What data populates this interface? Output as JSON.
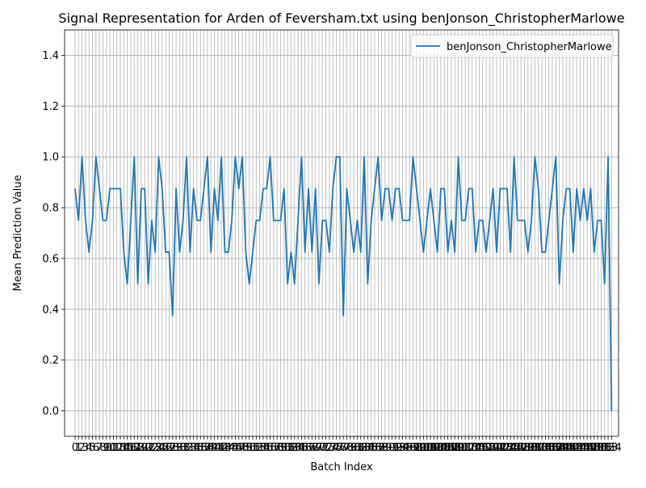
{
  "chart_data": {
    "type": "line",
    "title": "Signal Representation for Arden of Feversham.txt using benJonson_ChristopherMarlowe",
    "xlabel": "Batch Index",
    "ylabel": "Mean Prediction Value",
    "xlim": [
      -3,
      156
    ],
    "ylim": [
      -0.1,
      1.5
    ],
    "yticks": [
      0.0,
      0.2,
      0.4,
      0.6,
      0.8,
      1.0,
      1.2,
      1.4
    ],
    "ytick_labels": [
      "0.0",
      "0.2",
      "0.4",
      "0.6",
      "0.8",
      "1.0",
      "1.2",
      "1.4"
    ],
    "x_tick_step": 1,
    "grid": true,
    "legend_position": "top-right",
    "series": [
      {
        "name": "benJonson_ChristopherMarlowe",
        "color": "#1f77b4",
        "values": [
          0.875,
          0.75,
          1.0,
          0.75,
          0.625,
          0.75,
          1.0,
          0.875,
          0.75,
          0.75,
          0.875,
          0.875,
          0.875,
          0.875,
          0.625,
          0.5,
          0.75,
          1.0,
          0.5,
          0.875,
          0.875,
          0.5,
          0.75,
          0.625,
          1.0,
          0.875,
          0.625,
          0.625,
          0.375,
          0.875,
          0.625,
          0.75,
          1.0,
          0.625,
          0.875,
          0.75,
          0.75,
          0.875,
          1.0,
          0.625,
          0.875,
          0.75,
          1.0,
          0.625,
          0.625,
          0.75,
          1.0,
          0.875,
          1.0,
          0.625,
          0.5,
          0.625,
          0.75,
          0.75,
          0.875,
          0.875,
          1.0,
          0.75,
          0.75,
          0.75,
          0.875,
          0.5,
          0.625,
          0.5,
          0.75,
          1.0,
          0.625,
          0.875,
          0.625,
          0.875,
          0.5,
          0.75,
          0.75,
          0.625,
          0.875,
          1.0,
          1.0,
          0.375,
          0.875,
          0.75,
          0.625,
          0.75,
          0.625,
          1.0,
          0.5,
          0.75,
          0.875,
          1.0,
          0.75,
          0.875,
          0.875,
          0.75,
          0.875,
          0.875,
          0.75,
          0.75,
          0.75,
          1.0,
          0.875,
          0.75,
          0.625,
          0.75,
          0.875,
          0.75,
          0.625,
          0.875,
          0.875,
          0.625,
          0.75,
          0.625,
          1.0,
          0.75,
          0.75,
          0.875,
          0.875,
          0.625,
          0.75,
          0.75,
          0.625,
          0.75,
          0.875,
          0.625,
          0.875,
          0.875,
          0.875,
          0.625,
          1.0,
          0.75,
          0.75,
          0.75,
          0.625,
          0.75,
          1.0,
          0.875,
          0.625,
          0.625,
          0.75,
          0.875,
          1.0,
          0.5,
          0.75,
          0.875,
          0.875,
          0.625,
          0.875,
          0.75,
          0.875,
          0.75,
          0.875,
          0.625,
          0.75,
          0.75,
          0.5,
          1.0,
          0.0
        ]
      }
    ]
  }
}
